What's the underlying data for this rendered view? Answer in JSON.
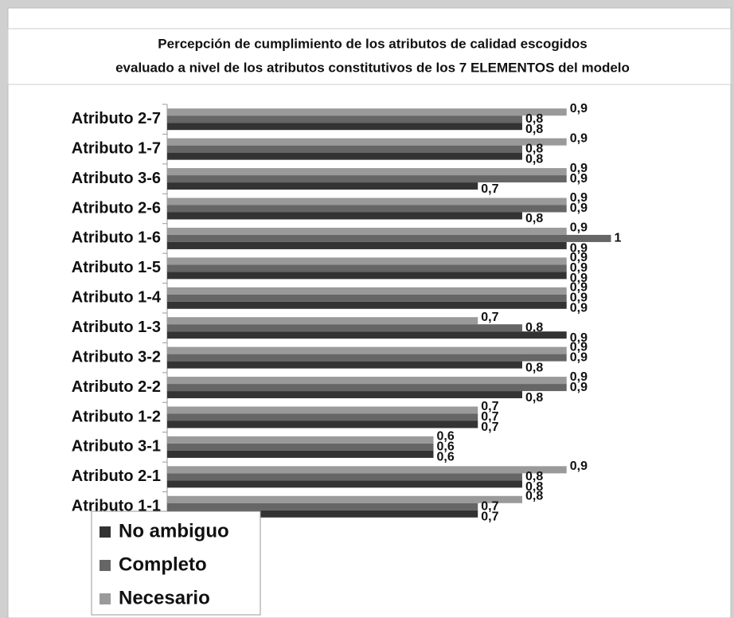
{
  "chart_data": {
    "type": "barh",
    "title": [
      "Percepción de cumplimiento de los atributos de calidad escogidos",
      "evaluado a nivel de los atributos constitutivos de los 7 ELEMENTOS del modelo"
    ],
    "categories": [
      "Atributo 2-7",
      "Atributo 1-7",
      "Atributo 3-6",
      "Atributo 2-6",
      "Atributo 1-6",
      "Atributo 1-5",
      "Atributo 1-4",
      "Atributo 1-3",
      "Atributo 3-2",
      "Atributo 2-2",
      "Atributo 1-2",
      "Atributo 3-1",
      "Atributo 2-1",
      "Atributo 1-1"
    ],
    "series": [
      {
        "name": "No ambiguo",
        "color": "#333333",
        "values": [
          0.8,
          0.8,
          0.7,
          0.8,
          0.9,
          0.9,
          0.9,
          0.9,
          0.8,
          0.8,
          0.7,
          0.6,
          0.8,
          0.7
        ],
        "value_labels": [
          "0,8",
          "0,8",
          "0,7",
          "0,8",
          "0,9",
          "0,9",
          "0,9",
          "0,9",
          "0,8",
          "0,8",
          "0,7",
          "0,6",
          "0,8",
          "0,7"
        ]
      },
      {
        "name": "Completo",
        "color": "#666666",
        "values": [
          0.8,
          0.8,
          0.9,
          0.9,
          1,
          0.9,
          0.9,
          0.8,
          0.9,
          0.9,
          0.7,
          0.6,
          0.8,
          0.7
        ],
        "value_labels": [
          "0,8",
          "0,8",
          "0,9",
          "0,9",
          "1",
          "0,9",
          "0,9",
          "0,8",
          "0,9",
          "0,9",
          "0,7",
          "0,6",
          "0,8",
          "0,7"
        ]
      },
      {
        "name": "Necesario",
        "color": "#9a9a9a",
        "values": [
          0.9,
          0.9,
          0.9,
          0.9,
          0.9,
          0.9,
          0.9,
          0.7,
          0.9,
          0.9,
          0.7,
          0.6,
          0.9,
          0.8
        ],
        "value_labels": [
          "0,9",
          "0,9",
          "0,9",
          "0,9",
          "0,9",
          "0,9",
          "0,9",
          "0,7",
          "0,9",
          "0,9",
          "0,7",
          "0,6",
          "0,9",
          "0,8"
        ]
      }
    ],
    "xlim": [
      0,
      1.27
    ]
  }
}
